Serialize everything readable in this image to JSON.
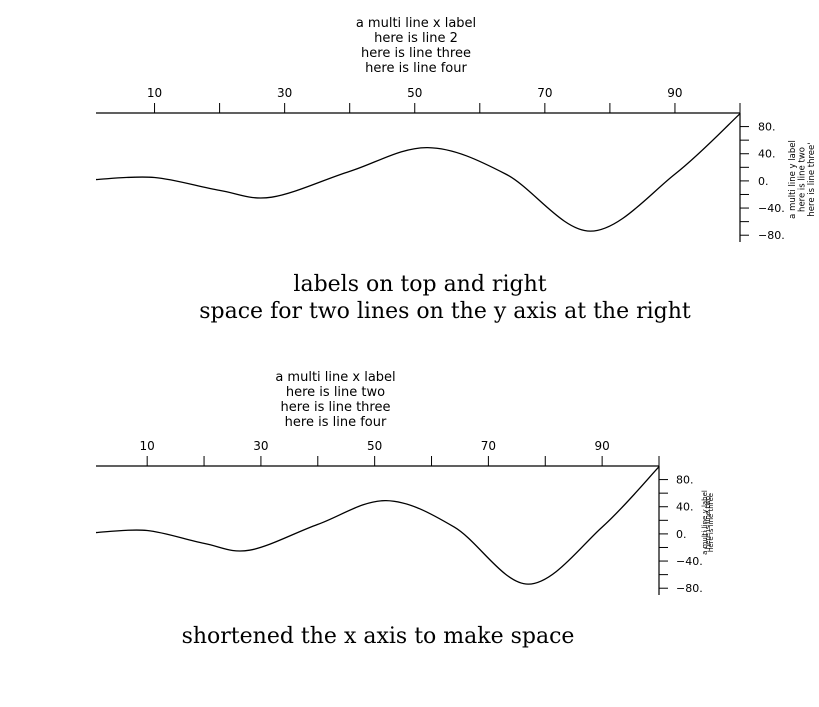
{
  "chart_data": [
    {
      "type": "line",
      "x_axis_position": "top",
      "y_axis_position": "right",
      "xlabel_lines": [
        "a multi line x label",
        "here is line 2",
        "here is line three",
        "here is line four"
      ],
      "ylabel_lines": [
        "a multi line y label",
        "here is line two",
        "here is line three'"
      ],
      "caption_lines": [
        "labels on top and right",
        "space for two lines on the y axis at the right"
      ],
      "xlim": [
        1,
        100
      ],
      "ylim": [
        -90,
        100
      ],
      "x_ticks_labeled": [
        "10",
        "30",
        "50",
        "70",
        "90"
      ],
      "x_tick_values_labeled": [
        10,
        30,
        50,
        70,
        90
      ],
      "x_tick_values_minor": [
        20,
        40,
        60,
        80,
        100
      ],
      "y_ticks_labeled": [
        "80.",
        "40.",
        "0.",
        "−40.",
        "−80."
      ],
      "y_tick_values_labeled": [
        80,
        40,
        0,
        -40,
        -80
      ],
      "y_tick_values_minor": [
        60,
        20,
        -20,
        -60
      ],
      "series": [
        {
          "x": [
            1,
            10,
            20,
            28,
            40,
            52,
            64,
            77,
            90,
            100
          ],
          "values": [
            2,
            5,
            -14,
            -24,
            14,
            49,
            10,
            -74,
            10,
            99
          ]
        }
      ]
    },
    {
      "type": "line",
      "x_axis_position": "top",
      "y_axis_position": "right",
      "xlabel_lines": [
        "a multi line x label",
        "here is line two",
        "here is line three",
        "here is line four"
      ],
      "ylabel_lines": [
        "a multi line y label",
        "here is line two",
        "here is line three"
      ],
      "caption_lines": [
        "shortened the x axis to make space"
      ],
      "xlim": [
        1,
        100
      ],
      "ylim": [
        -90,
        100
      ],
      "x_ticks_labeled": [
        "10",
        "30",
        "50",
        "70",
        "90"
      ],
      "x_tick_values_labeled": [
        10,
        30,
        50,
        70,
        90
      ],
      "x_tick_values_minor": [
        20,
        40,
        60,
        80,
        100
      ],
      "y_ticks_labeled": [
        "80.",
        "40.",
        "0.",
        "−40.",
        "−80."
      ],
      "y_tick_values_labeled": [
        80,
        40,
        0,
        -40,
        -80
      ],
      "y_tick_values_minor": [
        60,
        20,
        -20,
        -60
      ],
      "series": [
        {
          "x": [
            1,
            10,
            20,
            28,
            40,
            52,
            64,
            77,
            90,
            100
          ],
          "values": [
            2,
            5,
            -14,
            -24,
            14,
            49,
            10,
            -74,
            10,
            99
          ]
        }
      ]
    }
  ]
}
